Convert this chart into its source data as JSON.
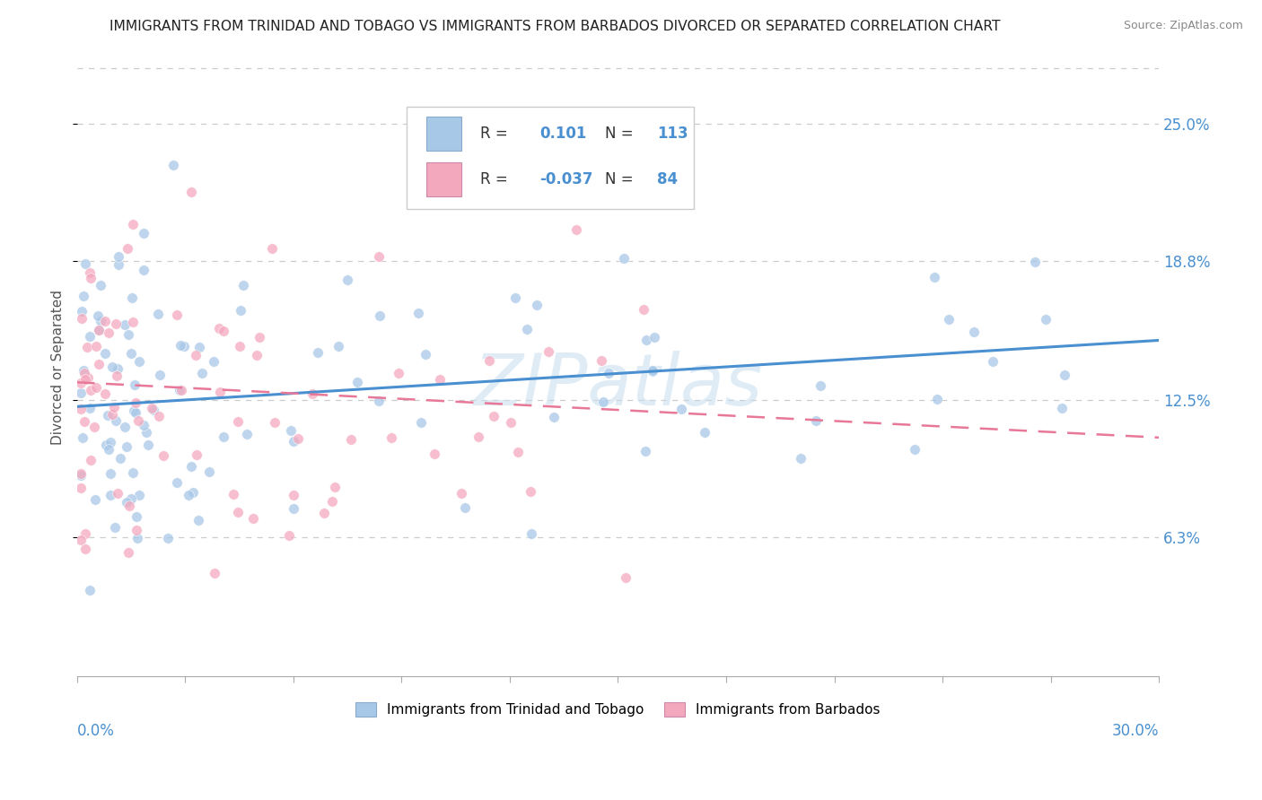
{
  "title": "IMMIGRANTS FROM TRINIDAD AND TOBAGO VS IMMIGRANTS FROM BARBADOS DIVORCED OR SEPARATED CORRELATION CHART",
  "source": "Source: ZipAtlas.com",
  "ylabel": "Divorced or Separated",
  "ytick_labels": [
    "6.3%",
    "12.5%",
    "18.8%",
    "25.0%"
  ],
  "ytick_values": [
    0.063,
    0.125,
    0.188,
    0.25
  ],
  "xlim": [
    0.0,
    0.3
  ],
  "ylim": [
    0.0,
    0.28
  ],
  "color_tt": "#a8c8e8",
  "color_bb": "#f4a8be",
  "line_color_tt": "#4a90d0",
  "line_color_bb": "#e87898",
  "watermark": "ZIPatlas",
  "legend_box_color": "#e8e8ee",
  "tt_R": "0.101",
  "tt_N": "113",
  "bb_R": "-0.037",
  "bb_N": "84"
}
